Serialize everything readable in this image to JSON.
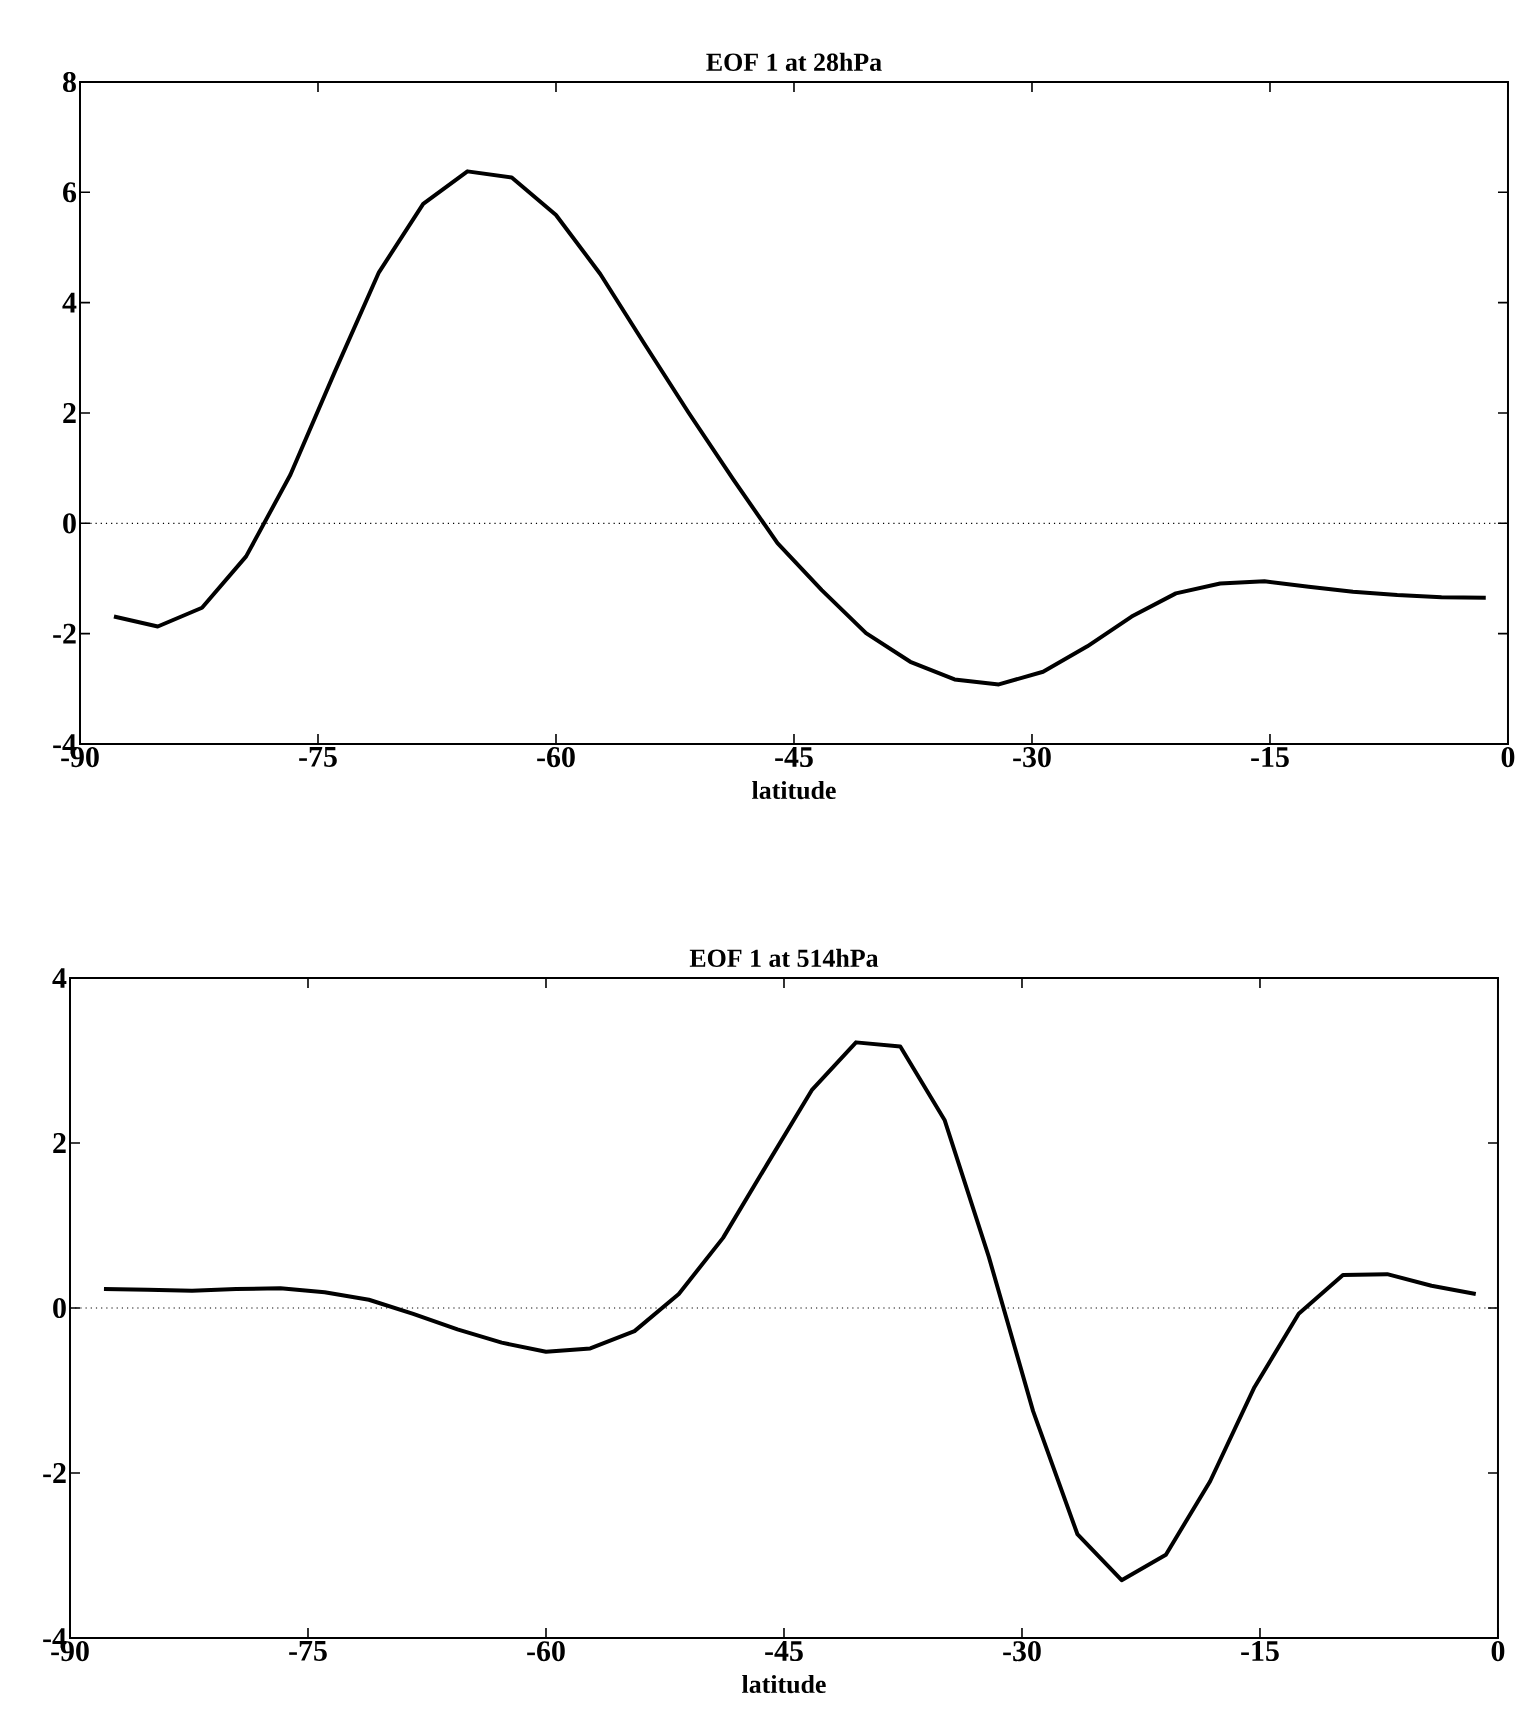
{
  "chart_data": [
    {
      "type": "line",
      "title": "EOF 1 at 28hPa",
      "xlabel": "latitude",
      "x": [
        -87.86,
        -85.1,
        -82.31,
        -79.53,
        -76.74,
        -73.95,
        -71.16,
        -68.37,
        -65.58,
        -62.79,
        -60.0,
        -57.21,
        -54.42,
        -51.63,
        -48.84,
        -46.04,
        -43.25,
        -40.46,
        -37.67,
        -34.88,
        -32.09,
        -29.3,
        -26.51,
        -23.72,
        -20.93,
        -18.14,
        -15.35,
        -12.56,
        -9.77,
        -6.98,
        -4.19,
        -1.4
      ],
      "values": [
        -1.69,
        -1.87,
        -1.53,
        -0.6,
        0.88,
        2.74,
        4.55,
        5.79,
        6.38,
        6.27,
        5.59,
        4.52,
        3.25,
        2.0,
        0.8,
        -0.36,
        -1.21,
        -1.99,
        -2.51,
        -2.83,
        -2.92,
        -2.69,
        -2.23,
        -1.69,
        -1.27,
        -1.09,
        -1.05,
        -1.15,
        -1.24,
        -1.3,
        -1.34,
        -1.35
      ],
      "color": "#000000",
      "line_style": "solid",
      "xlim": [
        -90,
        0
      ],
      "ylim": [
        -4,
        8
      ],
      "xticks": [
        -90,
        -75,
        -60,
        -45,
        -30,
        -15,
        0
      ],
      "yticks": [
        -4,
        -2,
        0,
        2,
        4,
        6,
        8
      ],
      "ref_lines": [
        {
          "axis": "y",
          "value": 0,
          "color": "#000000",
          "line_style": "dotted"
        }
      ]
    },
    {
      "type": "line",
      "title": "EOF 1 at 514hPa",
      "xlabel": "latitude",
      "x": [
        -87.86,
        -85.1,
        -82.31,
        -79.53,
        -76.74,
        -73.95,
        -71.16,
        -68.37,
        -65.58,
        -62.79,
        -60.0,
        -57.21,
        -54.42,
        -51.63,
        -48.84,
        -46.04,
        -43.25,
        -40.46,
        -37.67,
        -34.88,
        -32.09,
        -29.3,
        -26.51,
        -23.72,
        -20.93,
        -18.14,
        -15.35,
        -12.56,
        -9.77,
        -6.98,
        -4.19,
        -1.4
      ],
      "values": [
        0.23,
        0.22,
        0.21,
        0.23,
        0.24,
        0.19,
        0.1,
        -0.07,
        -0.26,
        -0.42,
        -0.53,
        -0.49,
        -0.28,
        0.17,
        0.85,
        1.75,
        2.64,
        3.22,
        3.17,
        2.28,
        0.62,
        -1.25,
        -2.74,
        -3.3,
        -2.99,
        -2.1,
        -0.96,
        -0.07,
        0.4,
        0.41,
        0.27,
        0.17
      ],
      "color": "#000000",
      "line_style": "solid",
      "xlim": [
        -90,
        0
      ],
      "ylim": [
        -4,
        4
      ],
      "xticks": [
        -90,
        -75,
        -60,
        -45,
        -30,
        -15,
        0
      ],
      "yticks": [
        -4,
        -2,
        0,
        2,
        4
      ],
      "ref_lines": [
        {
          "axis": "y",
          "value": 0,
          "color": "#000000",
          "line_style": "dotted"
        }
      ]
    }
  ]
}
